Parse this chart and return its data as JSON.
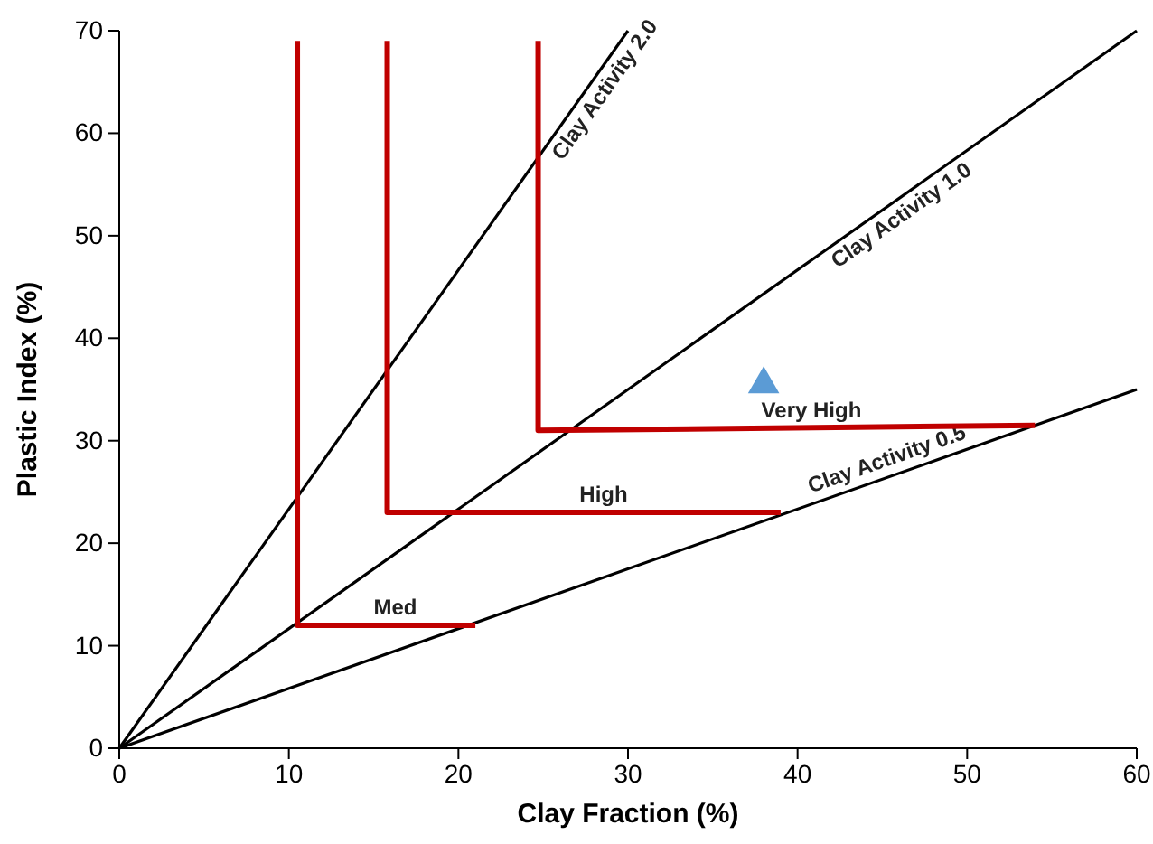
{
  "chart_data": {
    "type": "line",
    "xlabel": "Clay Fraction (%)",
    "ylabel": "Plastic Index (%)",
    "xlim": [
      0,
      60
    ],
    "xticks": [
      0,
      10,
      20,
      30,
      40,
      50,
      60
    ],
    "ylim": [
      0,
      70
    ],
    "yticks": [
      0,
      10,
      20,
      30,
      40,
      50,
      60,
      70
    ],
    "grid": false,
    "marker": "none",
    "line_style": "solid",
    "series": [
      {
        "name": "Clay Activity 2.0",
        "color": "#000000",
        "x": [
          0,
          30
        ],
        "values": [
          0,
          70
        ]
      },
      {
        "name": "Clay Activity 1.0",
        "color": "#000000",
        "x": [
          0,
          60
        ],
        "values": [
          0,
          70
        ]
      },
      {
        "name": "Clay Activity 0.5",
        "color": "#000000",
        "x": [
          0,
          60
        ],
        "values": [
          0,
          35
        ]
      },
      {
        "name": "Med",
        "color": "#c00000",
        "x": [
          10.5,
          10.5,
          21
        ],
        "values": [
          69,
          12,
          12
        ]
      },
      {
        "name": "High",
        "color": "#c00000",
        "x": [
          15.8,
          15.8,
          39
        ],
        "values": [
          69,
          23,
          23
        ]
      },
      {
        "name": "Very High",
        "color": "#c00000",
        "x": [
          24.7,
          24.7,
          54
        ],
        "values": [
          69,
          31,
          31.5
        ]
      },
      {
        "type": "scatter",
        "marker": "triangle",
        "color": "#5b9bd5",
        "x": [
          38
        ],
        "values": [
          35.5
        ]
      }
    ]
  }
}
